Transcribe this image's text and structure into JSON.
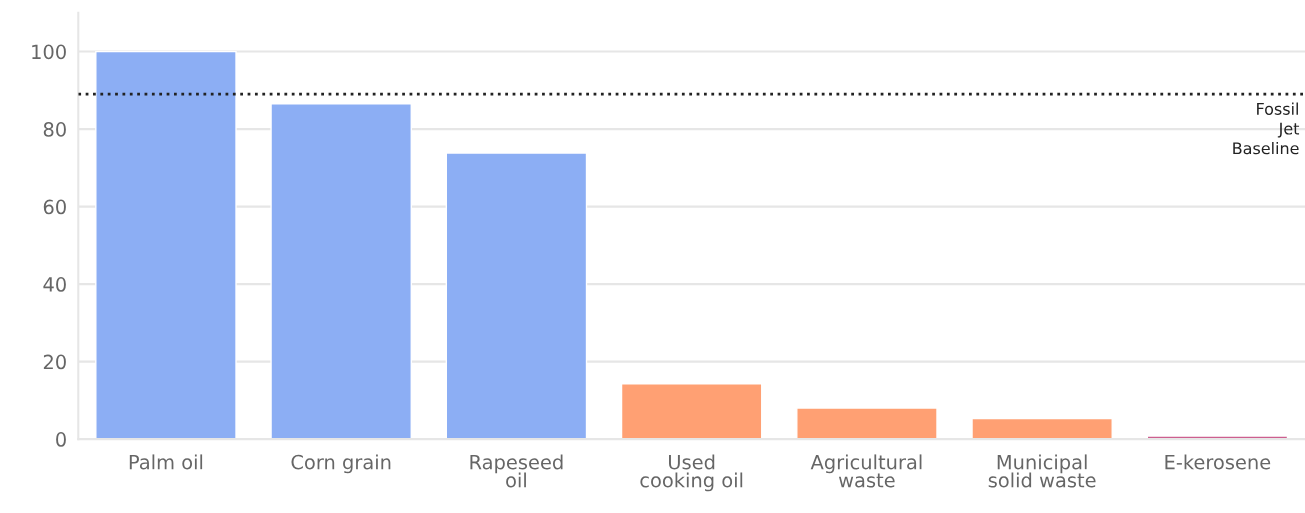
{
  "chart_data": {
    "type": "bar",
    "categories": [
      "Palm oil",
      "Corn grain",
      "Rapeseed oil",
      "Used cooking oil",
      "Agricultural waste",
      "Municipal solid waste",
      "E-kerosene"
    ],
    "values": [
      100,
      86.5,
      73.8,
      14.3,
      8.0,
      5.3,
      0.8
    ],
    "colors": [
      "#8caef4",
      "#8caef4",
      "#8caef4",
      "#ffa073",
      "#ffa073",
      "#ffa073",
      "#cc5f8f"
    ],
    "ylim": [
      0,
      110
    ],
    "yticks": [
      0,
      20,
      40,
      60,
      80,
      100
    ],
    "grid": "y",
    "ref_lines": [
      {
        "axis": "y",
        "value": 89,
        "label": "Fossil Jet Baseline",
        "color": "#222222",
        "line_style": "dotted"
      }
    ]
  }
}
